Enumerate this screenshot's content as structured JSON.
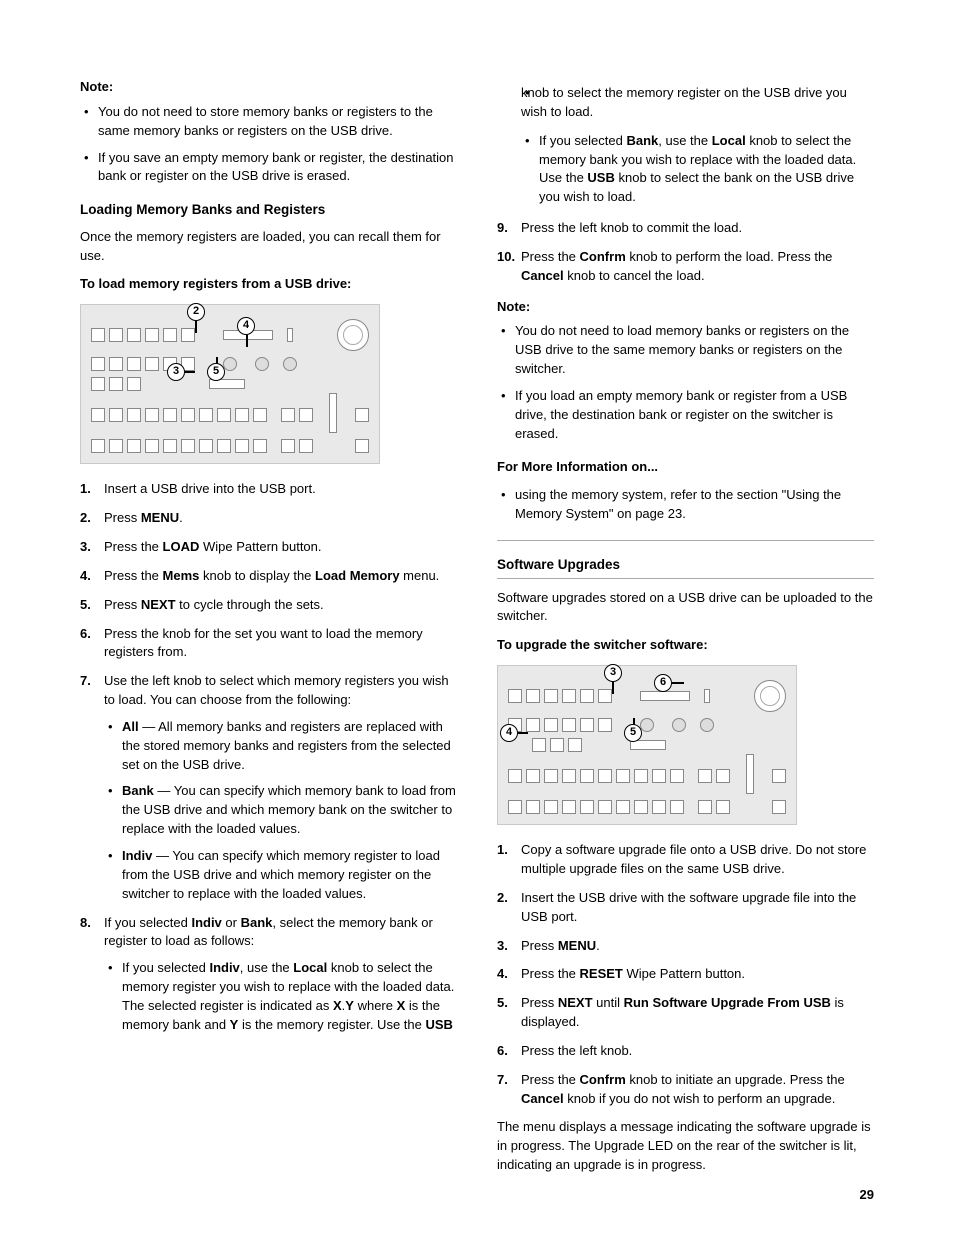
{
  "page_number": "29",
  "left": {
    "note_label": "Note:",
    "note_bullets": [
      "You do not need to store memory banks or registers to the same memory banks or registers on the USB drive.",
      "If you save an empty memory bank or register, the destination bank or register on the USB drive is erased."
    ],
    "h_loading": "Loading Memory Banks and Registers",
    "loading_intro": "Once the memory registers are loaded, you can recall them for use.",
    "proc_load_head": "To load memory registers from a USB drive:",
    "figure1_callouts": [
      "2",
      "4",
      "3",
      "5"
    ],
    "steps_load": [
      {
        "t": "Insert a USB drive into the USB port."
      },
      {
        "pre": "Press ",
        "b": "MENU",
        "post": "."
      },
      {
        "pre": "Press the ",
        "b": "LOAD",
        "post": " Wipe Pattern button."
      },
      {
        "pre": "Press the ",
        "b": "Mems",
        "mid": " knob to display the ",
        "b2": "Load Memory",
        "post": " menu."
      },
      {
        "pre": "Press ",
        "b": "NEXT",
        "post": " to cycle through the sets."
      },
      {
        "t": "Press the knob for the set you want to load the memory registers from."
      },
      {
        "t": "Use the left knob to select which memory registers you wish to load. You can choose from the following:",
        "subs": [
          {
            "b": "All",
            "t": " — All memory banks and registers are replaced with the stored memory banks and registers from the selected set on the USB drive."
          },
          {
            "b": "Bank",
            "t": " — You can specify which memory bank to load from the USB drive and which memory bank on the switcher to replace with the loaded values."
          },
          {
            "b": "Indiv",
            "t": " — You can specify which memory register to load from the USB drive and which memory register on the switcher to replace with the loaded values."
          }
        ]
      },
      {
        "pre": "If you selected ",
        "b": "Indiv",
        "mid": " or ",
        "b2": "Bank",
        "post": ", select the memory bank or register to load as follows:",
        "subs": [
          {
            "raw": "If you selected <span class=\"bold\">Indiv</span>, use the <span class=\"bold\">Local</span> knob to select the memory register you wish to replace with the loaded data. The selected register is indicated as <span class=\"bold\">X</span>.<span class=\"bold\">Y</span> where <span class=\"bold\">X</span> is the memory bank and <span class=\"bold\">Y</span> is the memory register. Use the <span class=\"bold\">USB</span>"
          }
        ]
      }
    ]
  },
  "right": {
    "cont_sub": "knob to select the memory register on the USB drive you wish to load.",
    "cont_sub2_raw": "If you selected <span class=\"bold\">Bank</span>, use the <span class=\"bold\">Local</span> knob to select the memory bank you wish to replace with the loaded data. Use the <span class=\"bold\">USB</span> knob to select the bank on the USB drive you wish to load.",
    "step9": "Press the left knob to commit the load.",
    "step10_raw": "Press the <span class=\"bold\">Confrm</span> knob to perform the load. Press the <span class=\"bold\">Cancel</span> knob to cancel the load.",
    "note_label": "Note:",
    "note_bullets": [
      "You do not need to load memory banks or registers on the USB drive to the same memory banks or registers on the switcher.",
      "If you load an empty memory bank or register from a USB drive, the destination bank or register on the switcher is erased."
    ],
    "more_info_head": "For More Information on...",
    "more_info_item": "using the memory system, refer to the section \"Using the Memory System\" on page 23.",
    "h_upgrades": "Software Upgrades",
    "upgrades_intro": "Software upgrades stored on a USB drive can be uploaded to the switcher.",
    "proc_upgrade_head": "To upgrade the switcher software:",
    "figure2_callouts": [
      "3",
      "6",
      "4",
      "5"
    ],
    "steps_upgrade": [
      {
        "t": "Copy a software upgrade file onto a USB drive. Do not store multiple upgrade files on the same USB drive."
      },
      {
        "t": "Insert the USB drive with the software upgrade file into the USB port."
      },
      {
        "pre": "Press ",
        "b": "MENU",
        "post": "."
      },
      {
        "pre": "Press the ",
        "b": "RESET",
        "post": " Wipe Pattern button."
      },
      {
        "pre": "Press ",
        "b": "NEXT",
        "mid": " until ",
        "b2": "Run Software Upgrade From USB",
        "post": " is displayed."
      },
      {
        "t": "Press the left knob."
      },
      {
        "raw": "Press the <span class=\"bold\">Confrm</span> knob to initiate an upgrade. Press the <span class=\"bold\">Cancel</span> knob if you do not wish to perform an upgrade."
      }
    ],
    "upgrade_tail": "The menu displays a message indicating the software upgrade is in progress. The Upgrade LED on the rear of the switcher is lit, indicating an upgrade is in progress."
  },
  "figure_style": {
    "bg": "#e9e9e9",
    "border": "#c9c9c9",
    "block_border": "#888888"
  }
}
